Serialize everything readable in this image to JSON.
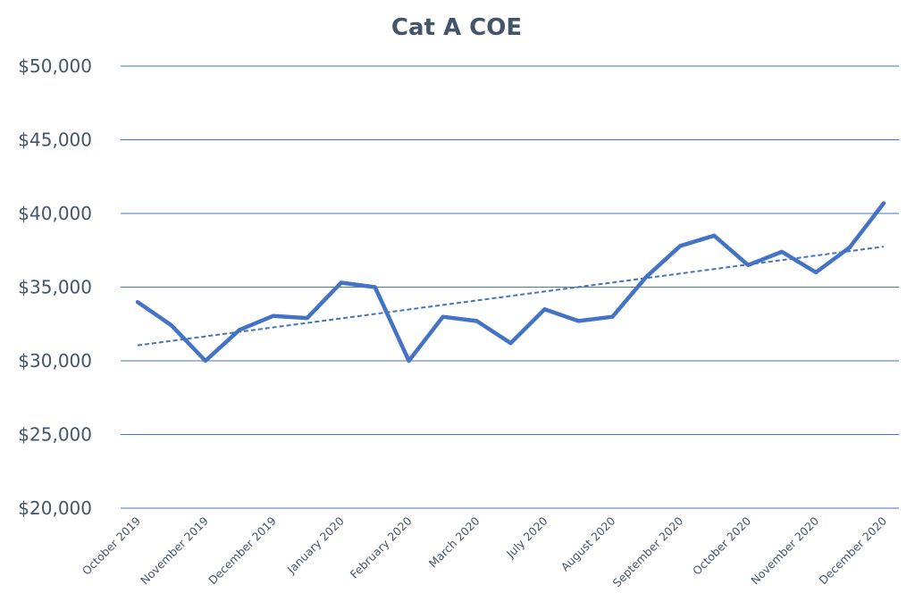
{
  "chart_data": {
    "type": "line",
    "title": "Cat A COE",
    "xlabel": "",
    "ylabel": "",
    "ylim": [
      20000,
      50000
    ],
    "y_ticks": [
      50000,
      45000,
      40000,
      35000,
      30000,
      25000,
      20000
    ],
    "y_tick_labels": [
      "$50,000",
      "$45,000",
      "$40,000",
      "$35,000",
      "$30,000",
      "$25,000",
      "$20,000"
    ],
    "x_tick_labels": [
      "October 2019",
      "November 2019",
      "December 2019",
      "January 2020",
      "February 2020",
      "March 2020",
      "July 2020",
      "August 2020",
      "September 2020",
      "October 2020",
      "November 2020",
      "December 2020"
    ],
    "grid": true,
    "legend": "none",
    "series": [
      {
        "values": [
          33990,
          32400,
          30000,
          32100,
          33050,
          32900,
          35300,
          35000,
          30000,
          32990,
          32700,
          31200,
          33500,
          32700,
          32990,
          35700,
          37800,
          38500,
          36500,
          37400,
          36000,
          37700,
          40700
        ]
      }
    ],
    "trendline": {
      "type": "linear",
      "start": 31050,
      "end": 37750
    },
    "colors": {
      "line": "#4472c4",
      "grid": "#4472c4",
      "text": "#44546a"
    }
  }
}
